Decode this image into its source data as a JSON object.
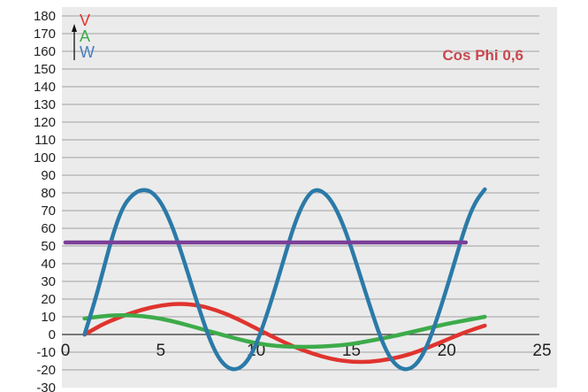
{
  "chart_data": {
    "type": "line",
    "title": "",
    "xlabel": "",
    "ylabel": "",
    "xlim": [
      0,
      25
    ],
    "ylim": [
      -30,
      180
    ],
    "x_ticks": [
      "0",
      "5",
      "10",
      "15",
      "20",
      "25"
    ],
    "y_ticks": [
      "180",
      "170",
      "160",
      "150",
      "140",
      "130",
      "120",
      "110",
      "100",
      "90",
      "80",
      "70",
      "60",
      "50",
      "40",
      "30",
      "20",
      "10",
      "0",
      "-10",
      "-20",
      "-30"
    ],
    "grid": "horizontal",
    "annotation": "Cos Phi 0,6",
    "unit_labels": [
      {
        "text": "V",
        "color": "#e0342e"
      },
      {
        "text": "A",
        "color": "#3dab4a"
      },
      {
        "text": "W",
        "color": "#4a7fc1"
      }
    ],
    "series": [
      {
        "color": "#e0342e",
        "x": [
          1,
          1.5,
          2,
          3,
          4,
          5,
          6,
          7,
          8,
          9,
          10,
          11,
          12,
          13,
          14,
          15,
          16,
          17,
          18,
          19,
          20,
          21,
          22
        ],
        "y": [
          0,
          3,
          6,
          10.5,
          14,
          16.5,
          17.5,
          16.5,
          13.5,
          9,
          3.5,
          -2,
          -7,
          -11,
          -14,
          -15.5,
          -15.5,
          -14,
          -11.5,
          -7.5,
          -3,
          1.5,
          5
        ]
      },
      {
        "color": "#3dab4a",
        "x": [
          1,
          2,
          3,
          4,
          5,
          6,
          7,
          8,
          9,
          10,
          11,
          12,
          13,
          14,
          15,
          16,
          17,
          18,
          19,
          20,
          21,
          22
        ],
        "y": [
          9,
          10.5,
          11,
          10.5,
          9,
          6.5,
          3.5,
          0.5,
          -2.5,
          -5,
          -6.5,
          -7,
          -7,
          -6.5,
          -5.5,
          -3.5,
          -1.5,
          1,
          3.5,
          6,
          8,
          10
        ]
      },
      {
        "color": "#2b7aa8",
        "x": [
          1,
          1.5,
          2,
          2.5,
          3,
          3.5,
          4,
          4.5,
          5,
          5.5,
          6,
          6.5,
          7,
          7.5,
          8,
          8.5,
          9,
          9.5,
          10,
          10.5,
          11,
          11.5,
          12,
          12.5,
          13,
          13.5,
          14,
          14.5,
          15,
          15.5,
          16,
          16.5,
          17,
          17.5,
          18,
          18.5,
          19,
          19.5,
          20,
          20.5,
          21,
          21.5,
          22
        ],
        "y": [
          0,
          17,
          37,
          57,
          72,
          79,
          82,
          81,
          75,
          64,
          49,
          32,
          15,
          -1,
          -13,
          -19,
          -20,
          -16,
          -6,
          9,
          26,
          44,
          62,
          75,
          82,
          81,
          75,
          64,
          49,
          32,
          15,
          -1,
          -13,
          -19,
          -20,
          -16,
          -6,
          9,
          26,
          44,
          62,
          75,
          82
        ]
      },
      {
        "color": "#7a3f98",
        "x": [
          0,
          21
        ],
        "y": [
          52,
          52
        ]
      }
    ]
  }
}
